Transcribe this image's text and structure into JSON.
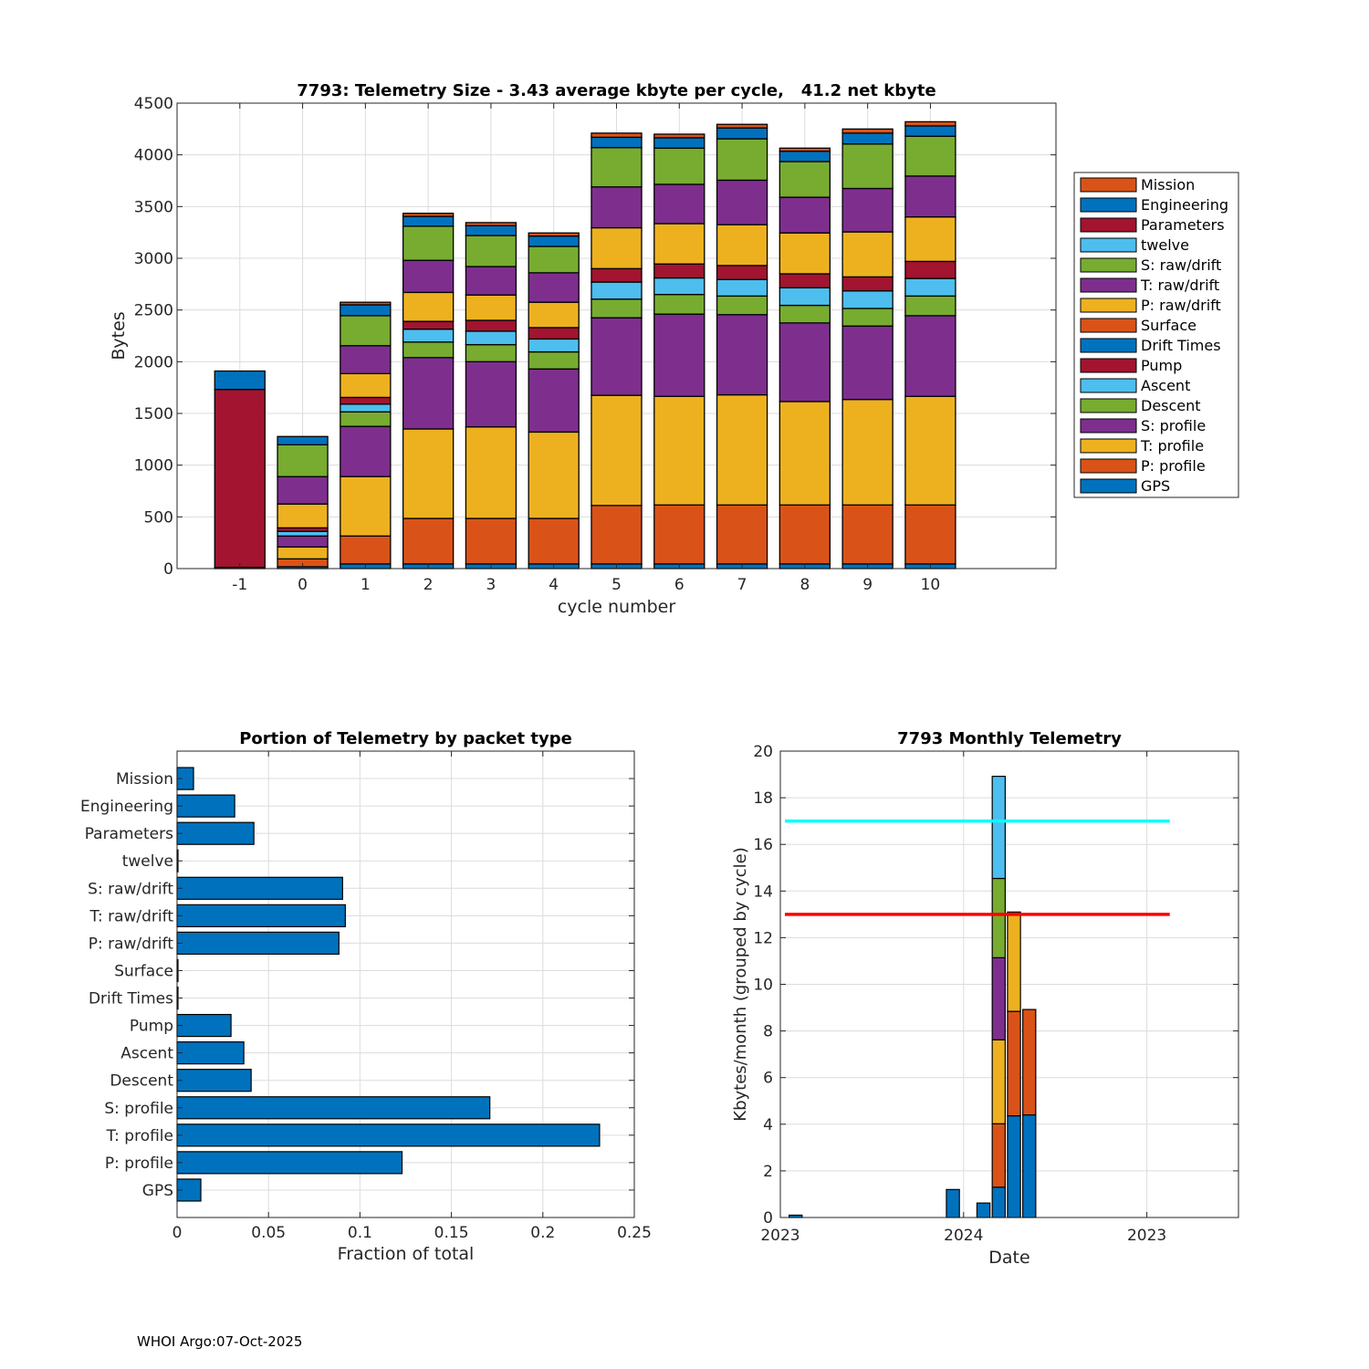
{
  "footer": "WHOI Argo:07-Oct-2025",
  "chart_data": [
    {
      "type": "bar",
      "stacked": true,
      "title": "7793: Telemetry Size - 3.43 average kbyte per cycle,   41.2 net kbyte",
      "xlabel": "cycle number",
      "ylabel": "Bytes",
      "ylim": [
        0,
        4500
      ],
      "yticks": [
        0,
        500,
        1000,
        1500,
        2000,
        2500,
        3000,
        3500,
        4000,
        4500
      ],
      "xlim": [
        -2,
        12
      ],
      "categories": [
        "-1",
        "0",
        "1",
        "2",
        "3",
        "4",
        "5",
        "6",
        "7",
        "8",
        "9",
        "10"
      ],
      "grid": true,
      "legend_position": "right",
      "series": [
        {
          "name": "GPS",
          "color": "#0072BD",
          "values": [
            12,
            18,
            45,
            45,
            45,
            45,
            45,
            45,
            45,
            45,
            45,
            45
          ]
        },
        {
          "name": "P: profile",
          "color": "#D95319",
          "values": [
            0,
            76,
            270,
            440,
            440,
            440,
            565,
            570,
            570,
            570,
            570,
            570
          ]
        },
        {
          "name": "T: profile",
          "color": "#EDB120",
          "values": [
            0,
            115,
            575,
            865,
            885,
            835,
            1065,
            1050,
            1065,
            1000,
            1020,
            1050
          ]
        },
        {
          "name": "S: profile",
          "color": "#7E2F8E",
          "values": [
            0,
            106,
            485,
            690,
            630,
            610,
            750,
            795,
            775,
            760,
            710,
            780
          ]
        },
        {
          "name": "Descent",
          "color": "#77AC30",
          "values": [
            0,
            0,
            140,
            150,
            165,
            165,
            180,
            190,
            180,
            170,
            170,
            190
          ]
        },
        {
          "name": "Ascent",
          "color": "#4DBEEE",
          "values": [
            0,
            44,
            75,
            125,
            130,
            125,
            165,
            160,
            160,
            170,
            170,
            170
          ]
        },
        {
          "name": "Pump",
          "color": "#A2142F",
          "values": [
            0,
            35,
            65,
            75,
            105,
            110,
            130,
            135,
            135,
            135,
            135,
            165
          ]
        },
        {
          "name": "Drift Times",
          "color": "#0072BD",
          "values": [
            0,
            0,
            0,
            0,
            0,
            0,
            0,
            0,
            0,
            0,
            0,
            0
          ]
        },
        {
          "name": "Surface",
          "color": "#D95319",
          "values": [
            0,
            0,
            0,
            0,
            0,
            0,
            0,
            0,
            0,
            0,
            0,
            0
          ]
        },
        {
          "name": "P: raw/drift",
          "color": "#EDB120",
          "values": [
            0,
            230,
            230,
            280,
            245,
            245,
            395,
            390,
            395,
            395,
            435,
            430
          ]
        },
        {
          "name": "T: raw/drift",
          "color": "#7E2F8E",
          "values": [
            0,
            265,
            270,
            310,
            275,
            285,
            395,
            380,
            430,
            345,
            420,
            395
          ]
        },
        {
          "name": "S: raw/drift",
          "color": "#77AC30",
          "values": [
            0,
            308,
            290,
            330,
            300,
            255,
            380,
            350,
            400,
            345,
            430,
            385
          ]
        },
        {
          "name": "twelve",
          "color": "#4DBEEE",
          "values": [
            0,
            0,
            0,
            0,
            0,
            0,
            0,
            0,
            0,
            0,
            0,
            0
          ]
        },
        {
          "name": "Parameters",
          "color": "#A2142F",
          "values": [
            1720,
            0,
            0,
            0,
            0,
            0,
            0,
            0,
            0,
            0,
            0,
            0
          ]
        },
        {
          "name": "Engineering",
          "color": "#0072BD",
          "values": [
            178,
            80,
            105,
            95,
            95,
            100,
            100,
            100,
            105,
            100,
            105,
            100
          ]
        },
        {
          "name": "Mission",
          "color": "#D95319",
          "values": [
            0,
            0,
            25,
            30,
            30,
            30,
            40,
            35,
            35,
            30,
            40,
            40
          ]
        }
      ],
      "legend": [
        "Mission",
        "Engineering",
        "Parameters",
        "twelve",
        "S: raw/drift",
        "T: raw/drift",
        "P: raw/drift",
        "Surface",
        "Drift Times",
        "Pump",
        "Ascent",
        "Descent",
        "S: profile",
        "T: profile",
        "P: profile",
        "GPS"
      ]
    },
    {
      "type": "bar",
      "orientation": "horizontal",
      "title": "Portion of Telemetry by packet type",
      "xlabel": "Fraction of total",
      "ylabel": "",
      "xlim": [
        0,
        0.25
      ],
      "xticks": [
        "0",
        "0.05",
        "0.1",
        "0.15",
        "0.2",
        "0.25"
      ],
      "xtick_values": [
        0,
        0.05,
        0.1,
        0.15,
        0.2,
        0.25
      ],
      "grid": true,
      "color": "#0072BD",
      "categories": [
        "Mission",
        "Engineering",
        "Parameters",
        "twelve",
        "S: raw/drift",
        "T: raw/drift",
        "P: raw/drift",
        "Surface",
        "Drift Times",
        "Pump",
        "Ascent",
        "Descent",
        "S: profile",
        "T: profile",
        "P: profile",
        "GPS"
      ],
      "values": [
        0.009,
        0.0315,
        0.042,
        0.0005,
        0.0905,
        0.092,
        0.0885,
        0.0005,
        0.0003,
        0.0295,
        0.0365,
        0.0405,
        0.171,
        0.231,
        0.123,
        0.013
      ]
    },
    {
      "type": "bar",
      "stacked": true,
      "title": "7793 Monthly Telemetry",
      "xlabel": "Date",
      "ylabel": "Kbytes/month (grouped by cycle)",
      "ylim": [
        0,
        20
      ],
      "yticks": [
        0,
        2,
        4,
        6,
        8,
        10,
        12,
        14,
        16,
        18,
        20
      ],
      "xtick_labels": [
        "2023",
        "2024",
        "2023"
      ],
      "xtick_months": [
        0,
        12,
        24
      ],
      "xlim_months": [
        0,
        30
      ],
      "grid": true,
      "bars": [
        {
          "month": 1,
          "segments": [
            {
              "value": 0.1,
              "color": "#0072BD"
            }
          ]
        },
        {
          "month": 11.3,
          "segments": [
            {
              "value": 1.2,
              "color": "#0072BD"
            }
          ]
        },
        {
          "month": 13.3,
          "segments": [
            {
              "value": 0.62,
              "color": "#0072BD"
            }
          ]
        },
        {
          "month": 14.3,
          "segments": [
            {
              "value": 1.3,
              "color": "#0072BD"
            },
            {
              "value": 2.72,
              "color": "#D95319"
            },
            {
              "value": 3.6,
              "color": "#EDB120"
            },
            {
              "value": 3.52,
              "color": "#7E2F8E"
            },
            {
              "value": 3.4,
              "color": "#77AC30"
            },
            {
              "value": 4.38,
              "color": "#4DBEEE"
            }
          ]
        },
        {
          "month": 15.3,
          "segments": [
            {
              "value": 4.36,
              "color": "#0072BD"
            },
            {
              "value": 4.48,
              "color": "#D95319"
            },
            {
              "value": 4.26,
              "color": "#EDB120"
            }
          ]
        },
        {
          "month": 16.3,
          "segments": [
            {
              "value": 4.4,
              "color": "#0072BD"
            },
            {
              "value": 4.52,
              "color": "#D95319"
            }
          ]
        }
      ],
      "reference_lines": [
        {
          "value": 17,
          "color": "#00FFFF",
          "label": "upper limit"
        },
        {
          "value": 13,
          "color": "#FF0000",
          "label": "lower limit"
        }
      ]
    }
  ]
}
